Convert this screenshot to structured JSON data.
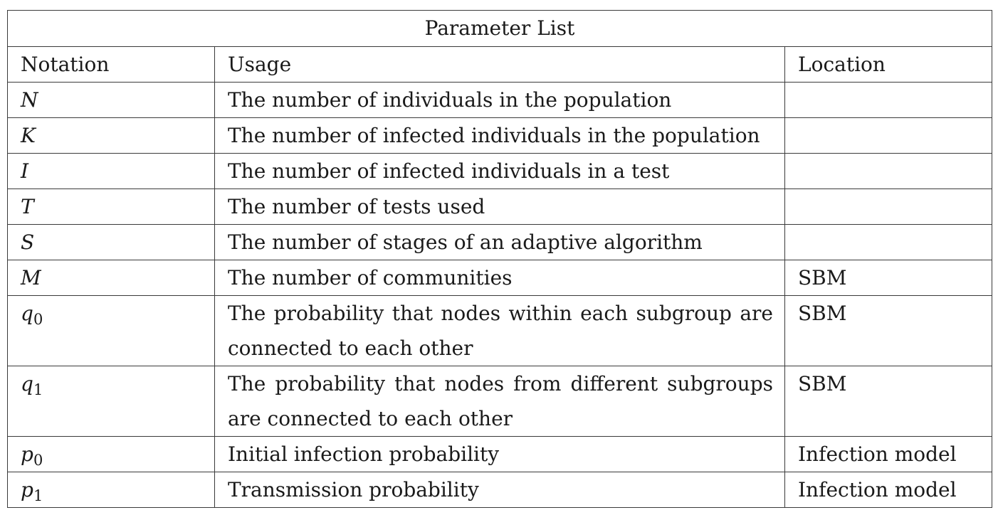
{
  "table": {
    "title": "Parameter List",
    "headers": {
      "notation": "Notation",
      "usage": "Usage",
      "location": "Location"
    },
    "rows": [
      {
        "symbol": "N",
        "sub": "",
        "usage": "The number of individuals in the population",
        "location": ""
      },
      {
        "symbol": "K",
        "sub": "",
        "usage": "The number of infected individuals in the population",
        "location": ""
      },
      {
        "symbol": "I",
        "sub": "",
        "usage": "The number of infected individuals in a test",
        "location": ""
      },
      {
        "symbol": "T",
        "sub": "",
        "usage": "The number of tests used",
        "location": ""
      },
      {
        "symbol": "S",
        "sub": "",
        "usage": "The number of stages of an adaptive algorithm",
        "location": ""
      },
      {
        "symbol": "M",
        "sub": "",
        "usage": "The number of communities",
        "location": "SBM"
      },
      {
        "symbol": "q",
        "sub": "0",
        "usage": "The probability that nodes within each subgroup are connected to each other",
        "location": "SBM"
      },
      {
        "symbol": "q",
        "sub": "1",
        "usage": "The probability that nodes from different subgroups are connected to each other",
        "location": "SBM"
      },
      {
        "symbol": "p",
        "sub": "0",
        "usage": "Initial infection probability",
        "location": "Infection model"
      },
      {
        "symbol": "p",
        "sub": "1",
        "usage": "Transmission probability",
        "location": "Infection model"
      }
    ]
  }
}
